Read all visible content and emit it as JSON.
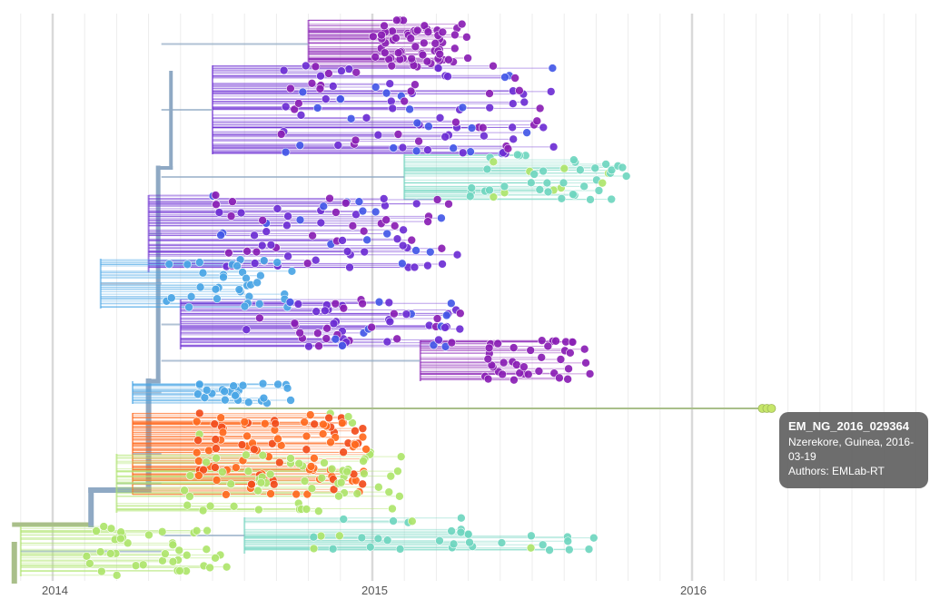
{
  "chart_data": {
    "type": "scatter",
    "description_type": "phylogenetic-tree",
    "x_axis": {
      "ticks": [
        "2014",
        "2015",
        "2016"
      ],
      "tick_values": [
        2014.0,
        2015.0,
        2016.0
      ],
      "range": [
        2013.9,
        2016.73
      ]
    },
    "grid": true,
    "colors": {
      "purple": "#8a1fb5",
      "violet": "#6d2ed4",
      "blue": "#4458e8",
      "sky": "#4aa6e6",
      "teal": "#6fd6c0",
      "lime": "#aee56c",
      "orange": "#ff6a1f",
      "redorange": "#f24d1c",
      "trunk": "#8fa9c4",
      "greenbranch": "#a9bf8a",
      "selected": "#c6e66a"
    },
    "clades": [
      {
        "key": "a",
        "color": "purple",
        "y": [
          22,
          75
        ],
        "tips": 65,
        "x": [
          2015.0,
          2015.3
        ]
      },
      {
        "key": "b",
        "color": "violet",
        "y": [
          72,
          170
        ],
        "tips": 95,
        "x": [
          2014.7,
          2015.6
        ]
      },
      {
        "key": "c",
        "color": "teal",
        "y": [
          170,
          220
        ],
        "tips": 45,
        "x": [
          2015.3,
          2015.8
        ]
      },
      {
        "key": "d",
        "color": "violet",
        "y": [
          215,
          300
        ],
        "tips": 80,
        "x": [
          2014.5,
          2015.3
        ]
      },
      {
        "key": "e",
        "color": "sky",
        "y": [
          285,
          340
        ],
        "tips": 35,
        "x": [
          2014.35,
          2014.75
        ]
      },
      {
        "key": "f",
        "color": "violet",
        "y": [
          330,
          385
        ],
        "tips": 60,
        "x": [
          2014.6,
          2015.3
        ]
      },
      {
        "key": "g",
        "color": "purple",
        "y": [
          375,
          420
        ],
        "tips": 40,
        "x": [
          2015.35,
          2015.7
        ]
      },
      {
        "key": "h",
        "color": "sky",
        "y": [
          420,
          445
        ],
        "tips": 25,
        "x": [
          2014.45,
          2014.75
        ]
      },
      {
        "key": "i",
        "color": "orange",
        "y": [
          455,
          545
        ],
        "tips": 110,
        "x": [
          2014.45,
          2015.0
        ]
      },
      {
        "key": "j",
        "color": "lime",
        "y": [
          500,
          565
        ],
        "tips": 45,
        "x": [
          2014.4,
          2015.1
        ]
      },
      {
        "key": "k",
        "color": "teal",
        "y": [
          570,
          610
        ],
        "tips": 35,
        "x": [
          2014.8,
          2015.75
        ]
      },
      {
        "key": "l",
        "color": "lime",
        "y": [
          580,
          635
        ],
        "tips": 40,
        "x": [
          2014.1,
          2014.55
        ]
      }
    ],
    "highlight": {
      "x": 2016.22,
      "y": 450,
      "count": 3,
      "color": "selected"
    }
  },
  "tooltip": {
    "title": "EM_NG_2016_029364",
    "line1": "Nzerekore, Guinea, 2016-",
    "line2": "03-19",
    "line3": "Authors: EMLab-RT"
  }
}
